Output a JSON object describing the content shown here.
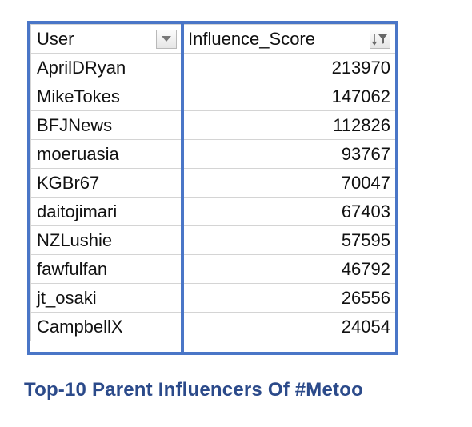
{
  "table": {
    "headers": {
      "user": "User",
      "score": "Influence_Score"
    },
    "rows": [
      {
        "user": "AprilDRyan",
        "score": "213970"
      },
      {
        "user": "MikeTokes",
        "score": "147062"
      },
      {
        "user": "BFJNews",
        "score": "112826"
      },
      {
        "user": "moeruasia",
        "score": "93767"
      },
      {
        "user": "KGBr67",
        "score": "70047"
      },
      {
        "user": "daitojimari",
        "score": "67403"
      },
      {
        "user": "NZLushie",
        "score": "57595"
      },
      {
        "user": "fawfulfan",
        "score": "46792"
      },
      {
        "user": "jt_osaki",
        "score": "26556"
      },
      {
        "user": "CampbellX",
        "score": "24054"
      }
    ],
    "icons": {
      "user_filter": "dropdown-arrow-icon",
      "score_filter": "sort-descending-filter-icon"
    }
  },
  "caption": "Top-10 Parent Influencers Of #Metoo",
  "colors": {
    "outline": "#4a76c7",
    "caption": "#2b4a8a"
  }
}
